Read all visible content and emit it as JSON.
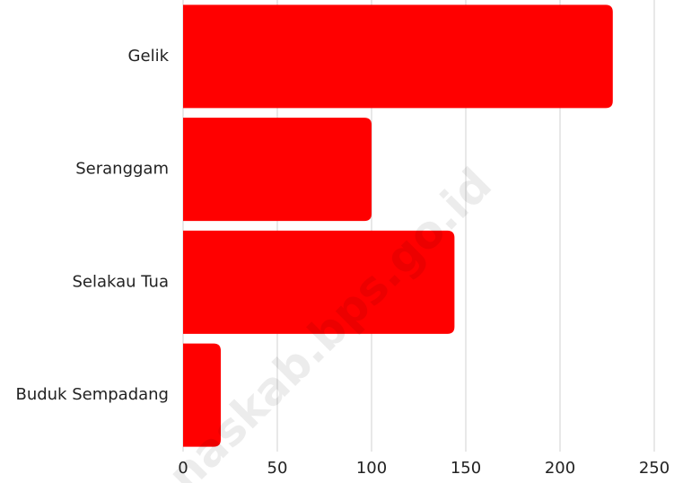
{
  "chart_data": {
    "type": "hbar",
    "categories": [
      "Gelik",
      "Seranggam",
      "Selakau Tua",
      "Buduk Sempadang"
    ],
    "values": [
      228,
      100,
      144,
      20
    ],
    "color": "#ff0000",
    "xlim": [
      0,
      250
    ],
    "xticks": [
      0,
      50,
      100,
      150,
      200,
      250
    ],
    "grid": true,
    "watermark": "naskab.bps.go.id"
  }
}
